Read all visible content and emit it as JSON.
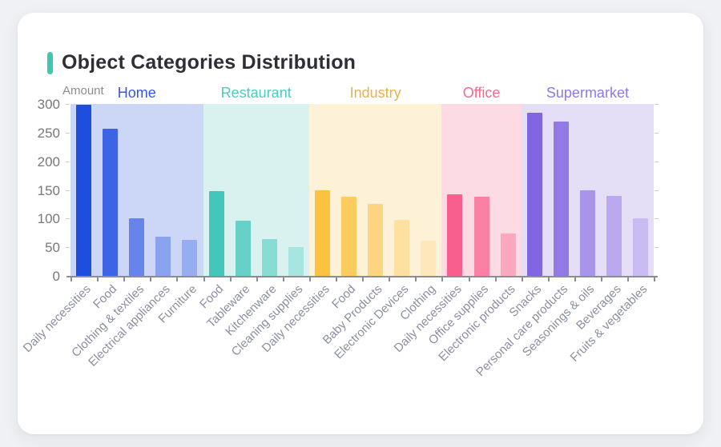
{
  "card": {
    "title": "Object Categories Distribution",
    "accent_color": "#3ec8b4"
  },
  "chart_data": {
    "type": "bar",
    "title": "Object Categories Distribution",
    "ylabel": "Amount",
    "xlabel": "",
    "ylim": [
      0,
      300
    ],
    "yticks": [
      0,
      50,
      100,
      150,
      200,
      250,
      300
    ],
    "grid": false,
    "legend_position": "group headers above plot",
    "axis_color": "#8c8d90",
    "groups": [
      {
        "name": "Home",
        "label_color": "#3356e8",
        "band_color": "#ccd6f6",
        "categories": [
          "Daily necessities",
          "Food",
          "Clothing & textiles",
          "Electrical appliances",
          "Furniture"
        ],
        "values": [
          298,
          257,
          101,
          69,
          63
        ],
        "bar_colors": [
          "#1d4ede",
          "#3c64e4",
          "#6684ea",
          "#8aa3ef",
          "#97adf1"
        ]
      },
      {
        "name": "Restaurant",
        "label_color": "#4accbf",
        "band_color": "#d9f2ef",
        "categories": [
          "Food",
          "Tableware",
          "Kitchenware",
          "Cleaning supplies"
        ],
        "values": [
          148,
          96,
          64,
          50
        ],
        "bar_colors": [
          "#45c6ba",
          "#68d1c7",
          "#87dcd3",
          "#a6e6df"
        ]
      },
      {
        "name": "Industry",
        "label_color": "#eab244",
        "band_color": "#fdf1d7",
        "categories": [
          "Daily necessities",
          "Food",
          "Baby Products",
          "Electronic Devices",
          "Clothing"
        ],
        "values": [
          150,
          138,
          125,
          98,
          62
        ],
        "bar_colors": [
          "#fdc340",
          "#fdcc5f",
          "#fdd580",
          "#fee0a1",
          "#fee8bb"
        ]
      },
      {
        "name": "Office",
        "label_color": "#f9688f",
        "band_color": "#fcdbe4",
        "categories": [
          "Daily necessities",
          "Office supplies",
          "Electronic products"
        ],
        "values": [
          142,
          138,
          74
        ],
        "bar_colors": [
          "#f95f8e",
          "#fa80a4",
          "#fba7c0"
        ]
      },
      {
        "name": "Supermarket",
        "label_color": "#8d79e7",
        "band_color": "#e4dff7",
        "categories": [
          "Snacks",
          "Personal care products",
          "Seasonings & oils",
          "Beverages",
          "Fruits & vegetables"
        ],
        "values": [
          284,
          270,
          149,
          140,
          100
        ],
        "bar_colors": [
          "#8165e1",
          "#9379e6",
          "#a994ec",
          "#baa9ef",
          "#c9bbf3"
        ]
      }
    ]
  }
}
